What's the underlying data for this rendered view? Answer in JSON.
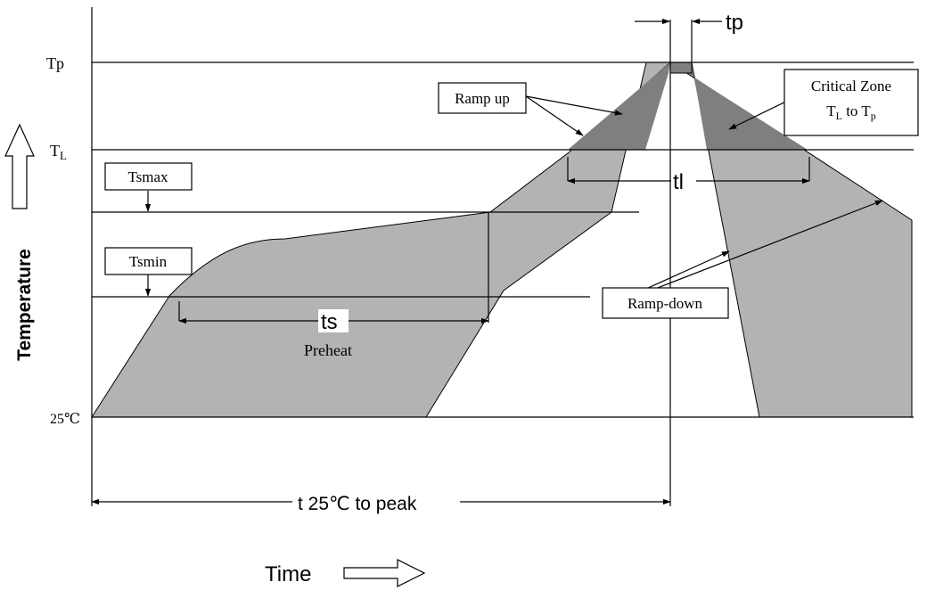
{
  "y_levels": {
    "tp": "Tp",
    "tl_main": "T",
    "tl_sub": "L",
    "base": "25℃"
  },
  "axes": {
    "y_label": "Temperature",
    "x_label": "Time"
  },
  "callouts": {
    "ramp_up": "Ramp up",
    "tsmax": "Tsmax",
    "tsmin": "Tsmin",
    "ramp_down": "Ramp-down",
    "critical_title": "Critical Zone",
    "critical_tl": "T",
    "critical_tl_sub": "L",
    "critical_to": " to T",
    "critical_tp_sub": "p"
  },
  "intervals": {
    "tp": "tp",
    "tl": "tl",
    "ts": "ts",
    "preheat": "Preheat",
    "t25": "t 25℃  to peak"
  },
  "colors": {
    "band": "#b3b3b3",
    "critical": "#7f7f7f",
    "line": "#000000"
  }
}
